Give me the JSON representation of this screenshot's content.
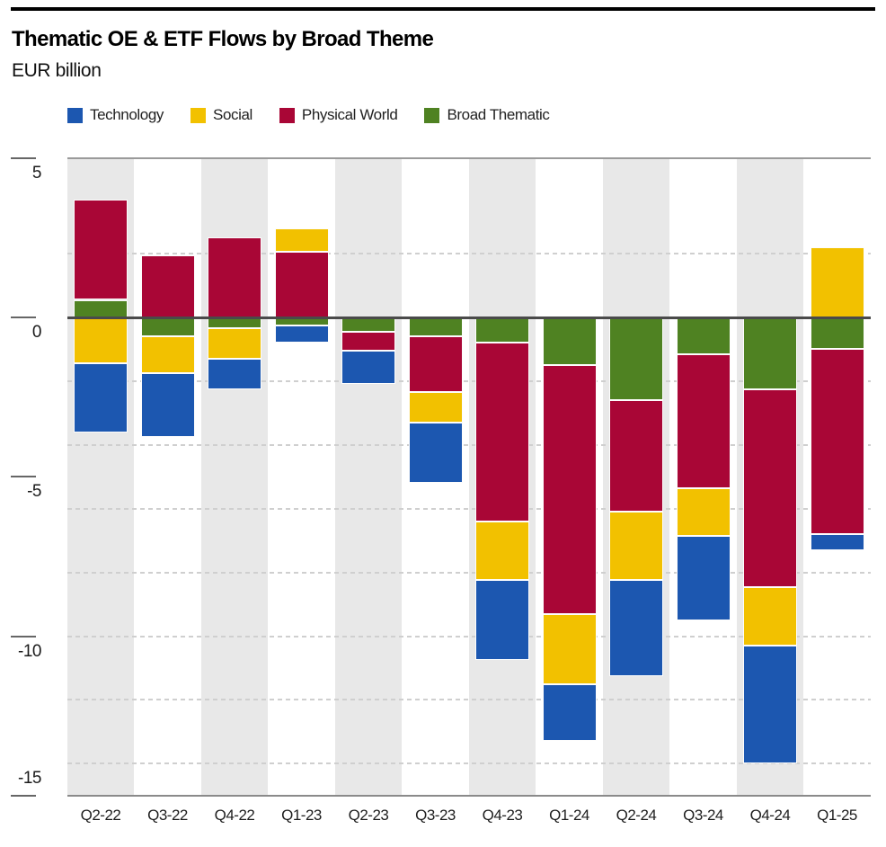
{
  "header": {
    "title": "Thematic OE & ETF Flows by Broad Theme",
    "subtitle": "EUR billion"
  },
  "chart_data": {
    "type": "bar",
    "stacked": true,
    "title": "Thematic OE & ETF Flows by Broad Theme",
    "unit": "EUR billion",
    "categories": [
      "Q2-22",
      "Q3-22",
      "Q4-22",
      "Q1-23",
      "Q2-23",
      "Q3-23",
      "Q4-23",
      "Q1-24",
      "Q2-24",
      "Q3-24",
      "Q4-24",
      "Q1-25"
    ],
    "series": [
      {
        "name": "Technology",
        "color": "#1C57B0",
        "values": [
          -2.15,
          -2.0,
          -0.95,
          -0.55,
          -1.05,
          -1.9,
          -2.5,
          -1.8,
          -3.0,
          -2.65,
          -3.7,
          -0.5
        ]
      },
      {
        "name": "Social",
        "color": "#F2C100",
        "values": [
          -1.45,
          -1.15,
          -0.95,
          0.75,
          0,
          -0.95,
          -1.85,
          -2.2,
          -2.15,
          -1.5,
          -1.85,
          2.2
        ]
      },
      {
        "name": "Physical World",
        "color": "#A90636",
        "values": [
          3.15,
          1.95,
          2.5,
          2.05,
          -0.6,
          -1.75,
          -5.6,
          -7.8,
          -3.5,
          -4.2,
          -6.2,
          -5.8
        ]
      },
      {
        "name": "Broad Thematic",
        "color": "#4F8222",
        "values": [
          0.55,
          -0.6,
          -0.35,
          -0.25,
          -0.45,
          -0.6,
          -0.8,
          -1.5,
          -2.6,
          -1.15,
          -2.25,
          -1.0
        ]
      }
    ],
    "stack_order_from_zero": [
      "Broad Thematic",
      "Physical World",
      "Social",
      "Technology"
    ],
    "legend_position": "top",
    "y_axis": {
      "ticks": [
        5,
        0,
        -5,
        -10,
        -15
      ],
      "gridlines": [
        2,
        -2,
        -4,
        -6,
        -8,
        -10,
        -12,
        -14
      ],
      "grid_style": "dashed",
      "ylim": [
        -15,
        5
      ]
    }
  }
}
